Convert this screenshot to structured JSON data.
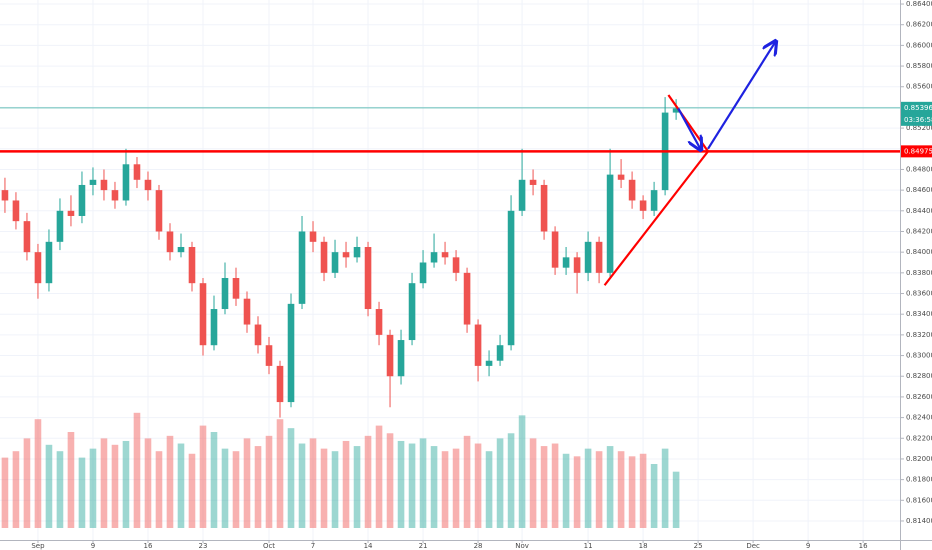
{
  "chart_data": {
    "type": "candlestick",
    "up_color": "#26a69a",
    "down_color": "#ef5350",
    "grid": true,
    "xlim": [
      -0.45,
      81.35
    ],
    "ylim": [
      0.81216,
      0.86439
    ],
    "xticks": [
      {
        "value": 3,
        "label": "Sep"
      },
      {
        "value": 8,
        "label": "9"
      },
      {
        "value": 13,
        "label": "16"
      },
      {
        "value": 18,
        "label": "23"
      },
      {
        "value": 24,
        "label": "Oct"
      },
      {
        "value": 28,
        "label": "7"
      },
      {
        "value": 33,
        "label": "14"
      },
      {
        "value": 38,
        "label": "21"
      },
      {
        "value": 43,
        "label": "28"
      },
      {
        "value": 47,
        "label": "Nov"
      },
      {
        "value": 53,
        "label": "11"
      },
      {
        "value": 58,
        "label": "18"
      },
      {
        "value": 63,
        "label": "25"
      },
      {
        "value": 68,
        "label": "Dec"
      },
      {
        "value": 73,
        "label": "9"
      },
      {
        "value": 78,
        "label": "16"
      }
    ],
    "yticks": [
      {
        "value": 0.864,
        "label": "0.86400"
      },
      {
        "value": 0.862,
        "label": "0.86200"
      },
      {
        "value": 0.86,
        "label": "0.86000"
      },
      {
        "value": 0.858,
        "label": "0.85800"
      },
      {
        "value": 0.856,
        "label": "0.85600"
      },
      {
        "value": 0.854,
        "label": "0.85400"
      },
      {
        "value": 0.852,
        "label": "0.85200"
      },
      {
        "value": 0.85,
        "label": "0.85000"
      },
      {
        "value": 0.848,
        "label": "0.84800"
      },
      {
        "value": 0.846,
        "label": "0.84600"
      },
      {
        "value": 0.844,
        "label": "0.84400"
      },
      {
        "value": 0.842,
        "label": "0.84200"
      },
      {
        "value": 0.84,
        "label": "0.84000"
      },
      {
        "value": 0.838,
        "label": "0.83800"
      },
      {
        "value": 0.836,
        "label": "0.83600"
      },
      {
        "value": 0.834,
        "label": "0.83400"
      },
      {
        "value": 0.832,
        "label": "0.83200"
      },
      {
        "value": 0.83,
        "label": "0.83000"
      },
      {
        "value": 0.828,
        "label": "0.82800"
      },
      {
        "value": 0.826,
        "label": "0.82600"
      },
      {
        "value": 0.824,
        "label": "0.82400"
      },
      {
        "value": 0.822,
        "label": "0.82200"
      },
      {
        "value": 0.82,
        "label": "0.82000"
      },
      {
        "value": 0.818,
        "label": "0.81800"
      },
      {
        "value": 0.816,
        "label": "0.81600"
      },
      {
        "value": 0.814,
        "label": "0.81400"
      }
    ],
    "open": [
      0.846,
      0.845,
      0.843,
      0.84,
      0.837,
      0.841,
      0.844,
      0.8435,
      0.8465,
      0.847,
      0.846,
      0.845,
      0.8485,
      0.847,
      0.846,
      0.842,
      0.84,
      0.8405,
      0.837,
      0.831,
      0.8345,
      0.8375,
      0.8355,
      0.833,
      0.831,
      0.829,
      0.8255,
      0.835,
      0.842,
      0.841,
      0.838,
      0.84,
      0.8395,
      0.8405,
      0.8345,
      0.832,
      0.828,
      0.8315,
      0.837,
      0.839,
      0.84,
      0.8395,
      0.838,
      0.833,
      0.829,
      0.8295,
      0.831,
      0.844,
      0.847,
      0.8465,
      0.842,
      0.8385,
      0.8395,
      0.838,
      0.841,
      0.838,
      0.8475,
      0.847,
      0.845,
      0.844,
      0.846,
      0.8535
    ],
    "high": [
      0.8472,
      0.8458,
      0.8438,
      0.8408,
      0.8422,
      0.8452,
      0.8455,
      0.8478,
      0.8482,
      0.848,
      0.8468,
      0.85,
      0.8492,
      0.8478,
      0.8465,
      0.8428,
      0.8418,
      0.841,
      0.8375,
      0.8358,
      0.839,
      0.8385,
      0.8362,
      0.8338,
      0.8318,
      0.8295,
      0.836,
      0.8435,
      0.843,
      0.8415,
      0.8412,
      0.841,
      0.8415,
      0.841,
      0.8352,
      0.8325,
      0.8325,
      0.838,
      0.8402,
      0.8418,
      0.841,
      0.8402,
      0.8385,
      0.8335,
      0.8305,
      0.832,
      0.8455,
      0.85,
      0.848,
      0.847,
      0.8425,
      0.8405,
      0.84,
      0.842,
      0.8415,
      0.85,
      0.849,
      0.8478,
      0.8455,
      0.8468,
      0.855,
      0.8548
    ],
    "low": [
      0.8438,
      0.8422,
      0.8392,
      0.8355,
      0.8362,
      0.8402,
      0.8425,
      0.8428,
      0.8455,
      0.845,
      0.8442,
      0.8445,
      0.8462,
      0.845,
      0.8412,
      0.8392,
      0.8395,
      0.8362,
      0.83,
      0.8305,
      0.834,
      0.8348,
      0.8322,
      0.8302,
      0.8282,
      0.824,
      0.825,
      0.8345,
      0.84,
      0.8372,
      0.8375,
      0.8385,
      0.839,
      0.8338,
      0.831,
      0.825,
      0.8272,
      0.831,
      0.8365,
      0.8385,
      0.8388,
      0.8372,
      0.8322,
      0.8275,
      0.828,
      0.829,
      0.8305,
      0.8435,
      0.8455,
      0.8412,
      0.8378,
      0.8378,
      0.836,
      0.8372,
      0.837,
      0.8375,
      0.8462,
      0.8442,
      0.8432,
      0.8435,
      0.8455,
      0.8528
    ],
    "close": [
      0.845,
      0.843,
      0.84,
      0.837,
      0.841,
      0.844,
      0.8435,
      0.8465,
      0.847,
      0.846,
      0.845,
      0.8485,
      0.847,
      0.846,
      0.842,
      0.84,
      0.8405,
      0.837,
      0.831,
      0.8345,
      0.8375,
      0.8355,
      0.833,
      0.831,
      0.829,
      0.8255,
      0.835,
      0.842,
      0.841,
      0.838,
      0.84,
      0.8395,
      0.8405,
      0.8345,
      0.832,
      0.828,
      0.8315,
      0.837,
      0.839,
      0.84,
      0.8395,
      0.838,
      0.833,
      0.829,
      0.8295,
      0.831,
      0.844,
      0.847,
      0.8465,
      0.842,
      0.8385,
      0.8395,
      0.838,
      0.841,
      0.838,
      0.8475,
      0.847,
      0.845,
      0.844,
      0.846,
      0.8535,
      0.8539
    ],
    "volume_lim": [
      0,
      100
    ],
    "volume": [
      55,
      60,
      70,
      85,
      65,
      60,
      75,
      55,
      62,
      70,
      65,
      68,
      90,
      70,
      60,
      72,
      66,
      58,
      80,
      75,
      62,
      60,
      70,
      64,
      72,
      85,
      78,
      66,
      70,
      62,
      60,
      68,
      64,
      72,
      80,
      74,
      68,
      66,
      70,
      64,
      60,
      62,
      72,
      66,
      60,
      70,
      74,
      88,
      70,
      64,
      66,
      58,
      56,
      62,
      60,
      64,
      60,
      56,
      58,
      50,
      62,
      44
    ],
    "price_line": {
      "value": 0.85396,
      "label": "0.85396",
      "color": "#26a69a"
    },
    "countdown": "03:36:58",
    "level_line": {
      "value": 0.84975,
      "label": "0.84975",
      "color": "#ff0000"
    },
    "trend_lines": [
      {
        "color": "#ff0000",
        "arrow": false,
        "x": [
          54.5,
          63.9
        ],
        "y": [
          0.8368,
          0.84975
        ]
      },
      {
        "color": "#ff0000",
        "arrow": false,
        "x": [
          60.3,
          63.9
        ],
        "y": [
          0.8552,
          0.84975
        ]
      },
      {
        "color": "#1e22e0",
        "arrow": true,
        "x": [
          61.2,
          63.2
        ],
        "y": [
          0.8539,
          0.85
        ]
      },
      {
        "color": "#1e22e0",
        "arrow": true,
        "x": [
          63.9,
          70
        ],
        "y": [
          0.85,
          0.8603
        ]
      }
    ]
  }
}
